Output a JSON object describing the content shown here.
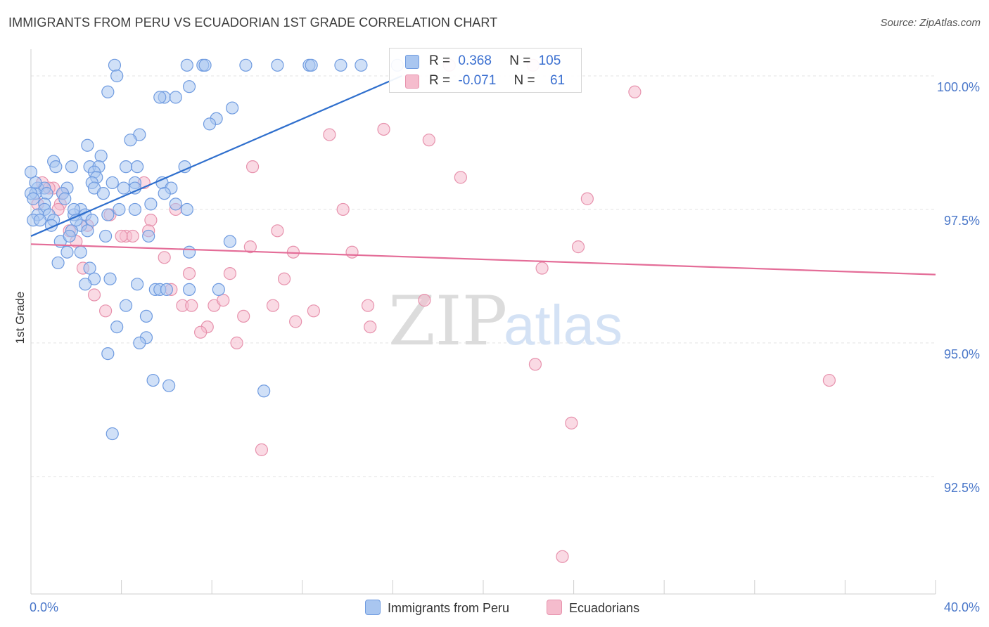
{
  "title": "IMMIGRANTS FROM PERU VS ECUADORIAN 1ST GRADE CORRELATION CHART",
  "source": "Source: ZipAtlas.com",
  "watermark": {
    "part1": "ZIP",
    "part2": "atlas"
  },
  "colors": {
    "blue_fill": "#a9c6f0",
    "blue_stroke": "#6f9be0",
    "blue_line": "#2f6fcd",
    "pink_fill": "#f5bccd",
    "pink_stroke": "#e792ad",
    "pink_line": "#e46d98",
    "tick_label": "#4a77c9",
    "grid": "#e3e3e3"
  },
  "legend": {
    "rows": [
      {
        "r_label": "R =",
        "r_value": "0.368",
        "n_label": "N =",
        "n_value": "105"
      },
      {
        "r_label": "R =",
        "r_value": "-0.071",
        "n_label": "N =",
        "n_value": "61"
      }
    ]
  },
  "bottom_legend": [
    "Immigrants from Peru",
    "Ecuadorians"
  ],
  "chart_data": {
    "type": "scatter",
    "xlabel": "",
    "ylabel": "1st Grade",
    "xlim": [
      0,
      40
    ],
    "ylim": [
      90.3,
      100.5
    ],
    "x_tick_labels": [
      {
        "value": 0,
        "label": "0.0%"
      },
      {
        "value": 40,
        "label": "40.0%"
      }
    ],
    "y_tick_labels": [
      {
        "value": 100.0,
        "label": "100.0%"
      },
      {
        "value": 97.5,
        "label": "97.5%"
      },
      {
        "value": 95.0,
        "label": "95.0%"
      },
      {
        "value": 92.5,
        "label": "92.5%"
      }
    ],
    "grid": true,
    "legend_position": "top-center",
    "series": [
      {
        "name": "Immigrants from Peru",
        "color": "#a9c6f0",
        "trend": {
          "x": [
            0,
            16.4
          ],
          "y": [
            97.0,
            100.0
          ]
        },
        "points": [
          [
            3.7,
            100.2
          ],
          [
            3.8,
            100.0
          ],
          [
            6.9,
            100.2
          ],
          [
            7.6,
            100.2
          ],
          [
            7.7,
            100.2
          ],
          [
            9.5,
            100.2
          ],
          [
            10.9,
            100.2
          ],
          [
            12.3,
            100.2
          ],
          [
            12.4,
            100.2
          ],
          [
            13.7,
            100.2
          ],
          [
            14.6,
            100.2
          ],
          [
            16.2,
            100.2
          ],
          [
            3.4,
            99.7
          ],
          [
            7.0,
            99.8
          ],
          [
            5.9,
            99.6
          ],
          [
            5.7,
            99.6
          ],
          [
            6.4,
            99.6
          ],
          [
            8.9,
            99.4
          ],
          [
            8.2,
            99.2
          ],
          [
            7.9,
            99.1
          ],
          [
            4.8,
            98.9
          ],
          [
            4.4,
            98.8
          ],
          [
            2.5,
            98.7
          ],
          [
            3.1,
            98.5
          ],
          [
            1.0,
            98.4
          ],
          [
            1.1,
            98.3
          ],
          [
            1.8,
            98.3
          ],
          [
            2.6,
            98.3
          ],
          [
            3.0,
            98.3
          ],
          [
            4.2,
            98.3
          ],
          [
            4.7,
            98.3
          ],
          [
            6.8,
            98.3
          ],
          [
            0.0,
            98.2
          ],
          [
            2.8,
            98.2
          ],
          [
            2.9,
            98.1
          ],
          [
            2.7,
            98.0
          ],
          [
            3.6,
            98.0
          ],
          [
            4.6,
            98.0
          ],
          [
            5.8,
            98.0
          ],
          [
            0.3,
            97.9
          ],
          [
            0.6,
            97.9
          ],
          [
            1.6,
            97.9
          ],
          [
            2.8,
            97.9
          ],
          [
            4.1,
            97.9
          ],
          [
            4.6,
            97.9
          ],
          [
            6.2,
            97.9
          ],
          [
            0.2,
            97.8
          ],
          [
            0.7,
            97.8
          ],
          [
            1.4,
            97.8
          ],
          [
            1.5,
            97.7
          ],
          [
            0.6,
            97.6
          ],
          [
            5.3,
            97.6
          ],
          [
            6.4,
            97.6
          ],
          [
            2.2,
            97.5
          ],
          [
            0.6,
            97.5
          ],
          [
            4.6,
            97.5
          ],
          [
            6.9,
            97.5
          ],
          [
            3.9,
            97.5
          ],
          [
            0.3,
            97.4
          ],
          [
            0.8,
            97.4
          ],
          [
            1.9,
            97.4
          ],
          [
            2.4,
            97.4
          ],
          [
            3.4,
            97.4
          ],
          [
            1.0,
            97.3
          ],
          [
            2.7,
            97.3
          ],
          [
            0.9,
            97.2
          ],
          [
            2.2,
            97.2
          ],
          [
            1.8,
            97.1
          ],
          [
            3.3,
            97.0
          ],
          [
            5.2,
            97.0
          ],
          [
            8.8,
            96.9
          ],
          [
            1.3,
            96.9
          ],
          [
            1.6,
            96.7
          ],
          [
            2.2,
            96.7
          ],
          [
            7.0,
            96.7
          ],
          [
            1.2,
            96.5
          ],
          [
            2.6,
            96.4
          ],
          [
            2.8,
            96.2
          ],
          [
            3.5,
            96.2
          ],
          [
            2.4,
            96.1
          ],
          [
            4.7,
            96.1
          ],
          [
            5.5,
            96.0
          ],
          [
            5.7,
            96.0
          ],
          [
            6.0,
            96.0
          ],
          [
            7.0,
            96.0
          ],
          [
            8.3,
            96.0
          ],
          [
            4.2,
            95.7
          ],
          [
            5.1,
            95.5
          ],
          [
            3.8,
            95.3
          ],
          [
            5.1,
            95.1
          ],
          [
            4.8,
            95.0
          ],
          [
            3.4,
            94.8
          ],
          [
            5.4,
            94.3
          ],
          [
            6.1,
            94.2
          ],
          [
            10.3,
            94.1
          ],
          [
            3.6,
            93.3
          ],
          [
            0.1,
            97.3
          ],
          [
            0.4,
            97.3
          ],
          [
            1.9,
            97.5
          ],
          [
            2.0,
            97.3
          ],
          [
            3.2,
            97.8
          ],
          [
            5.9,
            97.8
          ],
          [
            2.5,
            97.1
          ],
          [
            1.7,
            97.0
          ],
          [
            0.2,
            98.0
          ],
          [
            0.0,
            97.8
          ],
          [
            0.1,
            97.7
          ]
        ]
      },
      {
        "name": "Ecuadorians",
        "color": "#f5bccd",
        "trend": {
          "x": [
            0,
            40
          ],
          "y": [
            96.85,
            96.28
          ]
        },
        "points": [
          [
            18.5,
            100.2
          ],
          [
            22.2,
            100.2
          ],
          [
            26.7,
            99.7
          ],
          [
            15.6,
            99.0
          ],
          [
            13.2,
            98.9
          ],
          [
            17.6,
            98.8
          ],
          [
            9.8,
            98.3
          ],
          [
            19.0,
            98.1
          ],
          [
            0.5,
            98.0
          ],
          [
            1.0,
            97.9
          ],
          [
            5.0,
            98.0
          ],
          [
            1.4,
            97.8
          ],
          [
            24.6,
            97.7
          ],
          [
            1.3,
            97.6
          ],
          [
            6.4,
            97.5
          ],
          [
            13.8,
            97.5
          ],
          [
            3.5,
            97.4
          ],
          [
            5.3,
            97.3
          ],
          [
            2.5,
            97.2
          ],
          [
            1.7,
            97.1
          ],
          [
            4.2,
            97.0
          ],
          [
            4.5,
            97.0
          ],
          [
            5.2,
            97.1
          ],
          [
            10.9,
            97.1
          ],
          [
            4.0,
            97.0
          ],
          [
            9.7,
            96.8
          ],
          [
            11.6,
            96.7
          ],
          [
            14.2,
            96.7
          ],
          [
            24.2,
            96.8
          ],
          [
            5.9,
            96.6
          ],
          [
            2.3,
            96.4
          ],
          [
            22.6,
            96.4
          ],
          [
            7.0,
            96.3
          ],
          [
            8.8,
            96.3
          ],
          [
            11.2,
            96.2
          ],
          [
            6.2,
            96.0
          ],
          [
            2.8,
            95.9
          ],
          [
            6.7,
            95.7
          ],
          [
            7.1,
            95.7
          ],
          [
            8.1,
            95.7
          ],
          [
            8.5,
            95.8
          ],
          [
            10.7,
            95.7
          ],
          [
            14.9,
            95.7
          ],
          [
            17.4,
            95.8
          ],
          [
            3.3,
            95.6
          ],
          [
            9.4,
            95.5
          ],
          [
            11.7,
            95.4
          ],
          [
            12.5,
            95.6
          ],
          [
            7.8,
            95.3
          ],
          [
            15.0,
            95.3
          ],
          [
            7.5,
            95.2
          ],
          [
            9.1,
            95.0
          ],
          [
            22.3,
            94.6
          ],
          [
            35.3,
            94.3
          ],
          [
            23.9,
            93.5
          ],
          [
            10.2,
            93.0
          ],
          [
            23.5,
            91.0
          ],
          [
            0.8,
            97.9
          ],
          [
            1.2,
            97.5
          ],
          [
            2.0,
            96.9
          ],
          [
            0.3,
            97.6
          ]
        ]
      }
    ]
  }
}
